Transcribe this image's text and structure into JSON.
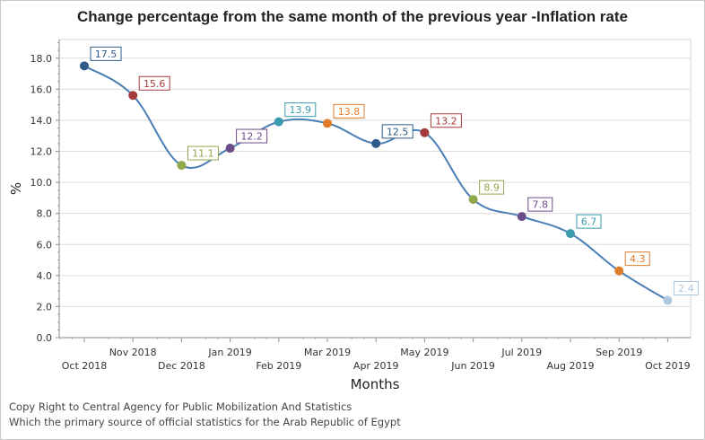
{
  "chart_data": {
    "type": "line",
    "title": "Change percentage from the same month of the previous year -Inflation  rate",
    "xlabel": "Months",
    "ylabel": "%",
    "ylim": [
      0,
      19.2
    ],
    "yticks": [
      "0.0",
      "2.0",
      "4.0",
      "6.0",
      "8.0",
      "10.0",
      "12.0",
      "14.0",
      "16.0",
      "18.0"
    ],
    "grid": true,
    "categories": [
      "Oct 2018",
      "Nov 2018",
      "Dec 2018",
      "Jan 2019",
      "Feb 2019",
      "Mar 2019",
      "Apr 2019",
      "May 2019",
      "Jun 2019",
      "Jul 2019",
      "Aug 2019",
      "Sep 2019",
      "Oct 2019"
    ],
    "series": [
      {
        "values": [
          17.5,
          15.6,
          11.1,
          12.2,
          13.9,
          13.8,
          12.5,
          13.2,
          8.9,
          7.8,
          6.7,
          4.3,
          2.4
        ],
        "line_color": "#4a7fb5",
        "point_colors": [
          "#2e5b8a",
          "#a33b3b",
          "#8fa84a",
          "#6d4c8a",
          "#3a9bb0",
          "#e07b2a",
          "#2e5b8a",
          "#a33b3b",
          "#8fa84a",
          "#6d4c8a",
          "#3a9bb0",
          "#e07b2a",
          "#aec7e0"
        ]
      }
    ]
  },
  "footer": {
    "line1": "Copy Right to Central Agency for Public Mobilization And Statistics",
    "line2": "Which the primary source of official statistics for the Arab Republic of Egypt"
  }
}
